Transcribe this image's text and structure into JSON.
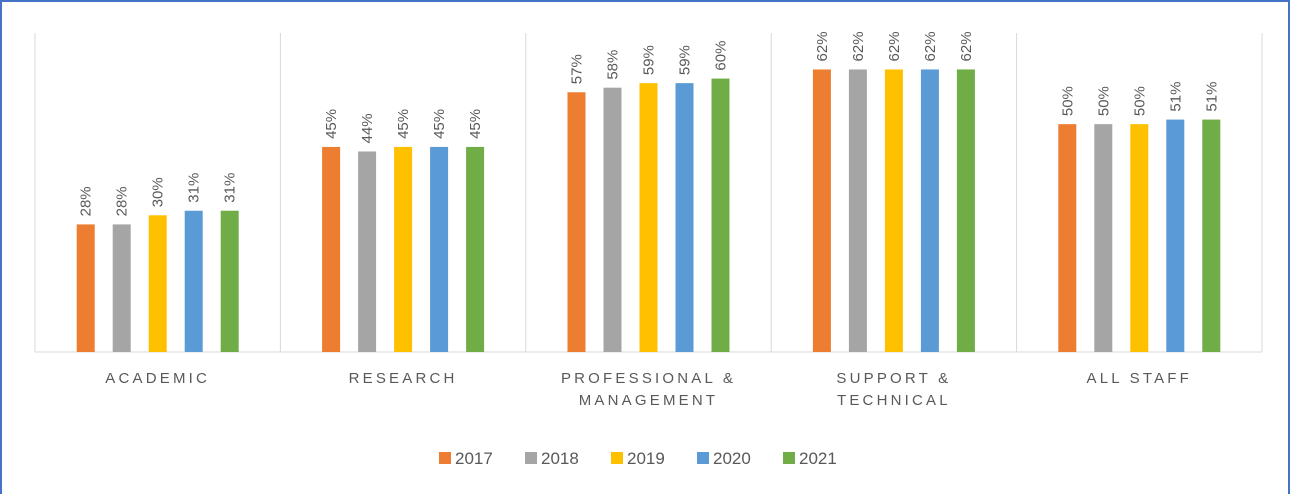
{
  "chart_data": {
    "type": "bar",
    "categories": [
      "ACADEMIC",
      "RESEARCH",
      "PROFESSIONAL & MANAGEMENT",
      "SUPPORT & TECHNICAL",
      "ALL STAFF"
    ],
    "series": [
      {
        "name": "2017",
        "color": "#ed7d31",
        "values": [
          28,
          45,
          57,
          62,
          50
        ],
        "value_labels": [
          "28%",
          "45%",
          "57%",
          "62%",
          "50%"
        ]
      },
      {
        "name": "2018",
        "color": "#a5a5a5",
        "values": [
          28,
          44,
          58,
          62,
          50
        ],
        "value_labels": [
          "28%",
          "44%",
          "58%",
          "62%",
          "50%"
        ]
      },
      {
        "name": "2019",
        "color": "#ffc000",
        "values": [
          30,
          45,
          59,
          62,
          50
        ],
        "value_labels": [
          "30%",
          "45%",
          "59%",
          "62%",
          "50%"
        ]
      },
      {
        "name": "2020",
        "color": "#5b9bd5",
        "values": [
          31,
          45,
          59,
          62,
          51
        ],
        "value_labels": [
          "31%",
          "45%",
          "59%",
          "62%",
          "51%"
        ]
      },
      {
        "name": "2021",
        "color": "#70ad47",
        "values": [
          31,
          45,
          60,
          62,
          51
        ],
        "value_labels": [
          "31%",
          "45%",
          "60%",
          "62%",
          "51%"
        ]
      }
    ],
    "ylim": [
      0,
      70
    ],
    "legend": "bottom"
  }
}
